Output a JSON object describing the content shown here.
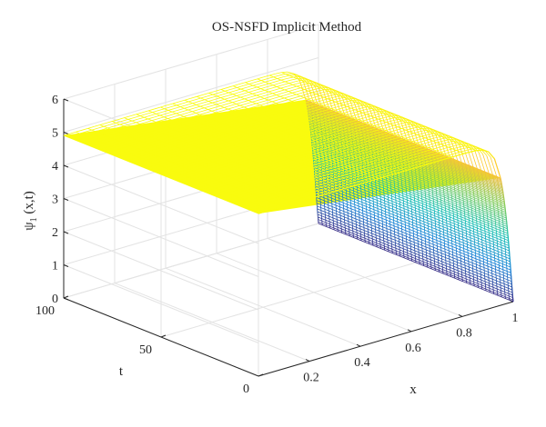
{
  "chart_data": {
    "type": "surface",
    "title": "OS-NSFD Implicit Method",
    "xlabel": "x",
    "ylabel": "t",
    "zlabel_main": "ψ",
    "zlabel_sub": "1",
    "zlabel_rest": " (x,t)",
    "xlim": [
      0,
      1
    ],
    "ylim": [
      0,
      100
    ],
    "zlim": [
      0,
      6
    ],
    "x_ticks": [
      "0.2",
      "0.4",
      "0.6",
      "0.8",
      "1"
    ],
    "y_ticks": [
      "0",
      "50",
      "100"
    ],
    "z_ticks": [
      "0",
      "1",
      "2",
      "3",
      "4",
      "5",
      "6"
    ],
    "grid": true,
    "colormap": "parula",
    "surface": {
      "plateau_value": 4.9,
      "boundary_value_at_x1": 0.0,
      "description_x": "psi is about 4.9 for x from 0 to about 0.95 and drops steeply to 0 at x = 1",
      "description_t": "essentially constant in t from 0 to 100"
    }
  }
}
